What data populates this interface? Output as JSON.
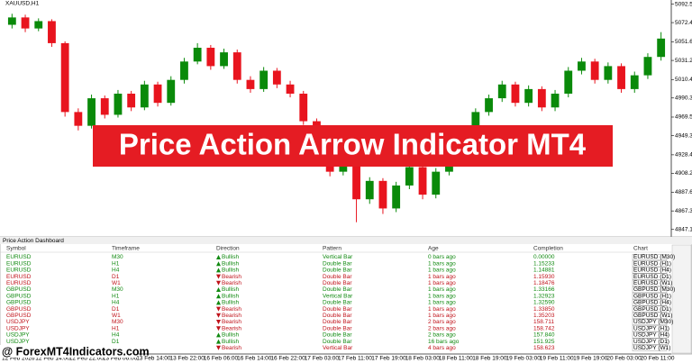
{
  "chart_data": {
    "type": "candlestick",
    "symbol_label": "XAUUSD,H1",
    "ylim": [
      4840,
      5097
    ],
    "yticks": [
      {
        "value": 5092.5,
        "label": "5092.50"
      },
      {
        "value": 5072.4,
        "label": "5072.40"
      },
      {
        "value": 5051.6,
        "label": "5051.60"
      },
      {
        "value": 5031.2,
        "label": "5031.20"
      },
      {
        "value": 5010.4,
        "label": "5010.40"
      },
      {
        "value": 4990.3,
        "label": "4990.30"
      },
      {
        "value": 4969.5,
        "label": "4969.50"
      },
      {
        "value": 4949.3,
        "label": "4949.30"
      },
      {
        "value": 4928.4,
        "label": "4928.40"
      },
      {
        "value": 4908.2,
        "label": "4908.20"
      },
      {
        "value": 4887.6,
        "label": "4887.60"
      },
      {
        "value": 4867.3,
        "label": "4867.30"
      },
      {
        "value": 4847.1,
        "label": "4847.10"
      }
    ],
    "x_labels": [
      "12 Feb 2026",
      "12 Feb 14:00",
      "12 Feb 22:00",
      "13 Feb 06:00",
      "13 Feb 14:00",
      "13 Feb 22:00",
      "16 Feb 06:00",
      "16 Feb 14:00",
      "16 Feb 22:00",
      "17 Feb 03:00",
      "17 Feb 11:00",
      "17 Feb 19:00",
      "18 Feb 03:00",
      "18 Feb 11:00",
      "18 Feb 19:00",
      "19 Feb 03:00",
      "19 Feb 11:00",
      "19 Feb 19:00",
      "20 Feb 03:00",
      "20 Feb 11:00"
    ],
    "up_color": "#0a8a0a",
    "down_color": "#e8141e",
    "candles": [
      [
        5070,
        5082,
        5066,
        5078
      ],
      [
        5078,
        5081,
        5062,
        5066
      ],
      [
        5066,
        5077,
        5063,
        5074
      ],
      [
        5074,
        5076,
        5046,
        5050
      ],
      [
        5050,
        5052,
        4970,
        4975
      ],
      [
        4975,
        4979,
        4955,
        4960
      ],
      [
        4960,
        4994,
        4957,
        4990
      ],
      [
        4990,
        4993,
        4968,
        4972
      ],
      [
        4972,
        4999,
        4969,
        4995
      ],
      [
        4995,
        4998,
        4976,
        4980
      ],
      [
        4980,
        5009,
        4977,
        5005
      ],
      [
        5005,
        5008,
        4981,
        4985
      ],
      [
        4985,
        5014,
        4982,
        5010
      ],
      [
        5010,
        5034,
        5006,
        5030
      ],
      [
        5030,
        5050,
        5027,
        5045
      ],
      [
        5045,
        5048,
        5021,
        5025
      ],
      [
        5025,
        5044,
        5022,
        5040
      ],
      [
        5040,
        5043,
        5006,
        5010
      ],
      [
        5010,
        5014,
        4996,
        5000
      ],
      [
        5000,
        5024,
        4997,
        5020
      ],
      [
        5020,
        5023,
        5001,
        5005
      ],
      [
        5005,
        5009,
        4991,
        4995
      ],
      [
        4995,
        4998,
        4961,
        4965
      ],
      [
        4965,
        4968,
        4935,
        4940
      ],
      [
        4940,
        4944,
        4905,
        4910
      ],
      [
        4910,
        4929,
        4906,
        4925
      ],
      [
        4925,
        4928,
        4855,
        4880
      ],
      [
        4880,
        4904,
        4875,
        4900
      ],
      [
        4900,
        4903,
        4864,
        4870
      ],
      [
        4870,
        4899,
        4866,
        4895
      ],
      [
        4895,
        4919,
        4891,
        4915
      ],
      [
        4915,
        4918,
        4880,
        4885
      ],
      [
        4885,
        4914,
        4881,
        4910
      ],
      [
        4910,
        4939,
        4906,
        4935
      ],
      [
        4935,
        4959,
        4931,
        4955
      ],
      [
        4955,
        4979,
        4951,
        4975
      ],
      [
        4975,
        4994,
        4971,
        4990
      ],
      [
        4990,
        5009,
        4986,
        5005
      ],
      [
        5005,
        5008,
        4981,
        4985
      ],
      [
        4985,
        5004,
        4981,
        5000
      ],
      [
        5000,
        5003,
        4976,
        4980
      ],
      [
        4980,
        4999,
        4976,
        4995
      ],
      [
        4995,
        5024,
        4991,
        5020
      ],
      [
        5020,
        5034,
        5016,
        5030
      ],
      [
        5030,
        5033,
        5006,
        5010
      ],
      [
        5010,
        5029,
        5006,
        5025
      ],
      [
        5025,
        5028,
        4996,
        5000
      ],
      [
        5000,
        5019,
        4996,
        5015
      ],
      [
        5015,
        5039,
        5011,
        5035
      ],
      [
        5035,
        5062,
        5031,
        5055
      ]
    ]
  },
  "banner": "Price Action Arrow Indicator MT4",
  "watermark": "@ ForexMT4Indicators.com",
  "dashboard": {
    "title": "Price Action Dashboard",
    "columns": [
      "Symbol",
      "Timeframe",
      "Direction",
      "Pattern",
      "Age",
      "Completion",
      "Chart"
    ],
    "bullish_color": "#118a11",
    "bearish_color": "#c0121a",
    "rows": [
      [
        "EURUSD",
        "M30",
        "Bullish",
        "Vertical Bar",
        "0 bars ago",
        "0.00000",
        "EURUSD (M30)"
      ],
      [
        "EURUSD",
        "H1",
        "Bullish",
        "Double Bar",
        "1 bars ago",
        "1.15233",
        "EURUSD (H1)"
      ],
      [
        "EURUSD",
        "H4",
        "Bullish",
        "Double Bar",
        "1 bars ago",
        "1.14881",
        "EURUSD (H4)"
      ],
      [
        "EURUSD",
        "D1",
        "Bearish",
        "Double Bar",
        "1 bars ago",
        "1.15930",
        "EURUSD (D1)"
      ],
      [
        "EURUSD",
        "W1",
        "Bearish",
        "Double Bar",
        "1 bars ago",
        "1.18476",
        "EURUSD (W1)"
      ],
      [
        "GBPUSD",
        "M30",
        "Bullish",
        "Double Bar",
        "1 bars ago",
        "1.33166",
        "GBPUSD (M30)"
      ],
      [
        "GBPUSD",
        "H1",
        "Bullish",
        "Vertical Bar",
        "1 bars ago",
        "1.32923",
        "GBPUSD (H1)"
      ],
      [
        "GBPUSD",
        "H4",
        "Bullish",
        "Double Bar",
        "1 bars ago",
        "1.32590",
        "GBPUSD (H4)"
      ],
      [
        "GBPUSD",
        "D1",
        "Bearish",
        "Double Bar",
        "1 bars ago",
        "1.33850",
        "GBPUSD (D1)"
      ],
      [
        "GBPUSD",
        "W1",
        "Bearish",
        "Double Bar",
        "1 bars ago",
        "1.35203",
        "GBPUSD (W1)"
      ],
      [
        "USDJPY",
        "M30",
        "Bearish",
        "Double Bar",
        "2 bars ago",
        "158.711",
        "USDJPY (M30)"
      ],
      [
        "USDJPY",
        "H1",
        "Bearish",
        "Double Bar",
        "2 bars ago",
        "158.742",
        "USDJPY (H1)"
      ],
      [
        "USDJPY",
        "H4",
        "Bullish",
        "Double Bar",
        "2 bars ago",
        "157.840",
        "USDJPY (H4)"
      ],
      [
        "USDJPY",
        "D1",
        "Bullish",
        "Double Bar",
        "16 bars ago",
        "151.925",
        "USDJPY (D1)"
      ],
      [
        "USDJPY",
        "W1",
        "Bearish",
        "Vertical Bar",
        "4 bars ago",
        "158.623",
        "USDJPY (W1)"
      ]
    ]
  }
}
